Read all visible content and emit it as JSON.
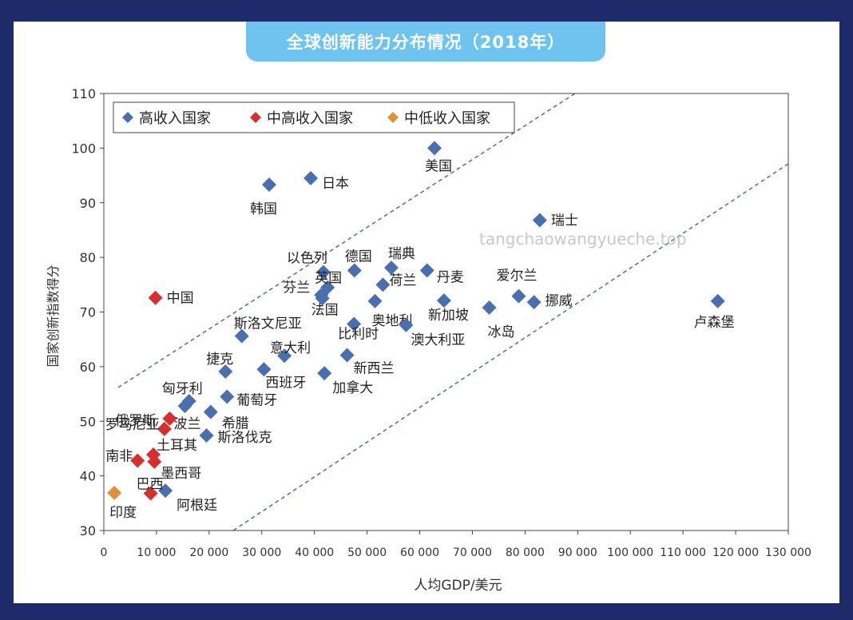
{
  "chart_data": {
    "type": "scatter",
    "title": "全球创新能力分布情况（2018年）",
    "xlabel": "人均GDP/美元",
    "ylabel": "国家创新指数得分",
    "xlim": [
      0,
      130000
    ],
    "ylim": [
      30,
      110
    ],
    "x_ticks": [
      0,
      10000,
      20000,
      30000,
      40000,
      50000,
      60000,
      70000,
      80000,
      90000,
      100000,
      110000,
      120000,
      130000
    ],
    "x_tick_labels": [
      "0",
      "10 000",
      "20 000",
      "30 000",
      "40 000",
      "50 000",
      "60 000",
      "70 000",
      "80 000",
      "90 000",
      "100 000",
      "110 000",
      "120 000",
      "130 000"
    ],
    "y_ticks": [
      30,
      40,
      50,
      60,
      70,
      80,
      90,
      100,
      110
    ],
    "legend_position": "top-left",
    "series": [
      {
        "name": "高收入国家",
        "color": "#4a6fae",
        "points": [
          {
            "label": "美国",
            "x": 62800,
            "y": 100
          },
          {
            "label": "日本",
            "x": 39300,
            "y": 94.5
          },
          {
            "label": "韩国",
            "x": 31400,
            "y": 93.3
          },
          {
            "label": "瑞士",
            "x": 82800,
            "y": 86.8
          },
          {
            "label": "以色列",
            "x": 41700,
            "y": 77.3
          },
          {
            "label": "德国",
            "x": 47600,
            "y": 77.6
          },
          {
            "label": "瑞典",
            "x": 54600,
            "y": 78.1
          },
          {
            "label": "丹麦",
            "x": 61400,
            "y": 77.6
          },
          {
            "label": "芬兰",
            "x": 41300,
            "y": 73.1
          },
          {
            "label": "英国",
            "x": 42500,
            "y": 74.5
          },
          {
            "label": "荷兰",
            "x": 53000,
            "y": 75.0
          },
          {
            "label": "法国",
            "x": 41500,
            "y": 72.5
          },
          {
            "label": "奥地利",
            "x": 51500,
            "y": 72.0
          },
          {
            "label": "新加坡",
            "x": 64600,
            "y": 72.1
          },
          {
            "label": "爱尔兰",
            "x": 78800,
            "y": 72.9
          },
          {
            "label": "挪威",
            "x": 81700,
            "y": 71.8
          },
          {
            "label": "冰岛",
            "x": 73200,
            "y": 70.8
          },
          {
            "label": "卢森堡",
            "x": 116600,
            "y": 72.0
          },
          {
            "label": "比利时",
            "x": 47500,
            "y": 67.8
          },
          {
            "label": "澳大利亚",
            "x": 57400,
            "y": 67.6
          },
          {
            "label": "斯洛文尼亚",
            "x": 26200,
            "y": 65.6
          },
          {
            "label": "意大利",
            "x": 34300,
            "y": 62.0
          },
          {
            "label": "新西兰",
            "x": 46200,
            "y": 62.1
          },
          {
            "label": "捷克",
            "x": 23100,
            "y": 59.1
          },
          {
            "label": "西班牙",
            "x": 30400,
            "y": 59.5
          },
          {
            "label": "加拿大",
            "x": 41900,
            "y": 58.8
          },
          {
            "label": "匈牙利",
            "x": 16200,
            "y": 53.7
          },
          {
            "label": "葡萄牙",
            "x": 23400,
            "y": 54.5
          },
          {
            "label": "波兰",
            "x": 15400,
            "y": 52.8
          },
          {
            "label": "希腊",
            "x": 20300,
            "y": 51.7
          },
          {
            "label": "斯洛伐克",
            "x": 19500,
            "y": 47.4
          },
          {
            "label": "阿根廷",
            "x": 11700,
            "y": 37.3
          }
        ]
      },
      {
        "name": "中高收入国家",
        "color": "#d5302e",
        "points": [
          {
            "label": "中国",
            "x": 9800,
            "y": 72.6
          },
          {
            "label": "俄罗斯",
            "x": 12500,
            "y": 50.5
          },
          {
            "label": "罗马尼亚",
            "x": 11500,
            "y": 48.6
          },
          {
            "label": "土耳其",
            "x": 9400,
            "y": 43.9
          },
          {
            "label": "南非",
            "x": 6400,
            "y": 42.8
          },
          {
            "label": "墨西哥",
            "x": 9600,
            "y": 42.6
          },
          {
            "label": "巴西",
            "x": 8900,
            "y": 36.8
          }
        ]
      },
      {
        "name": "中低收入国家",
        "color": "#e0913b",
        "points": [
          {
            "label": "印度",
            "x": 2000,
            "y": 36.9
          }
        ]
      }
    ]
  }
}
